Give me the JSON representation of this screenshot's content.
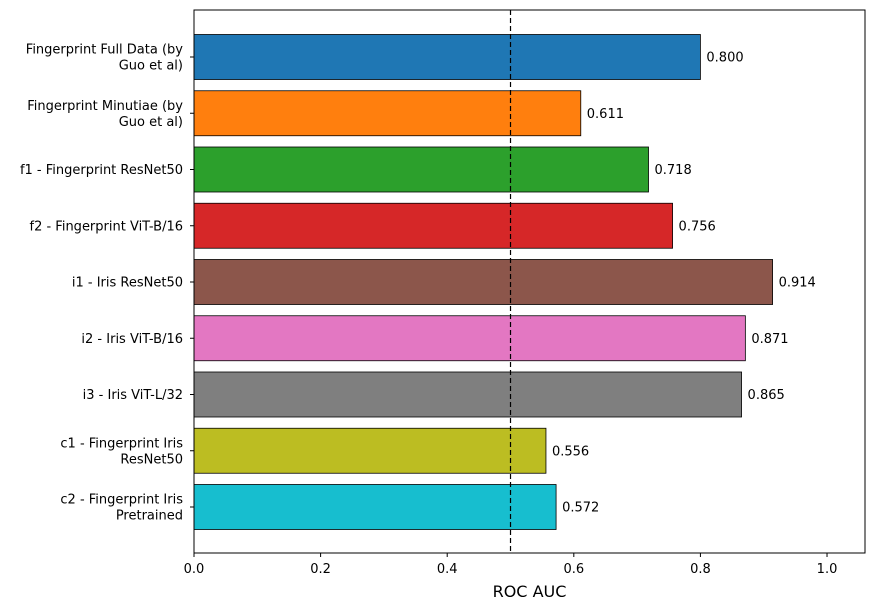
{
  "chart_data": {
    "type": "bar",
    "orientation": "horizontal",
    "categories": [
      [
        "Fingerprint Full Data (by",
        "Guo et al)"
      ],
      [
        "Fingerprint Minutiae (by",
        "Guo et al)"
      ],
      [
        "f1 - Fingerprint ResNet50"
      ],
      [
        "f2 - Fingerprint ViT-B/16"
      ],
      [
        "i1 - Iris ResNet50"
      ],
      [
        "i2 - Iris ViT-B/16"
      ],
      [
        "i3 - Iris ViT-L/32"
      ],
      [
        "c1 - Fingerprint Iris",
        "ResNet50"
      ],
      [
        "c2 - Fingerprint Iris",
        "Pretrained"
      ]
    ],
    "values": [
      0.8,
      0.611,
      0.718,
      0.756,
      0.914,
      0.871,
      0.865,
      0.556,
      0.572
    ],
    "value_labels": [
      "0.800",
      "0.611",
      "0.718",
      "0.756",
      "0.914",
      "0.871",
      "0.865",
      "0.556",
      "0.572"
    ],
    "colors": [
      "#1f77b4",
      "#ff7f0e",
      "#2ca02c",
      "#d62728",
      "#8c564b",
      "#e377c2",
      "#7f7f7f",
      "#bcbd22",
      "#17becf"
    ],
    "xlabel": "ROC AUC",
    "ylabel": "",
    "title": "",
    "xlim": [
      0,
      1.06
    ],
    "xticks": [
      0.0,
      0.2,
      0.4,
      0.6,
      0.8,
      1.0
    ],
    "xtick_labels": [
      "0.0",
      "0.2",
      "0.4",
      "0.6",
      "0.8",
      "1.0"
    ],
    "reference_line": {
      "x": 0.5,
      "style": "dashed",
      "color": "#000000"
    },
    "grid": false,
    "legend": "none"
  }
}
